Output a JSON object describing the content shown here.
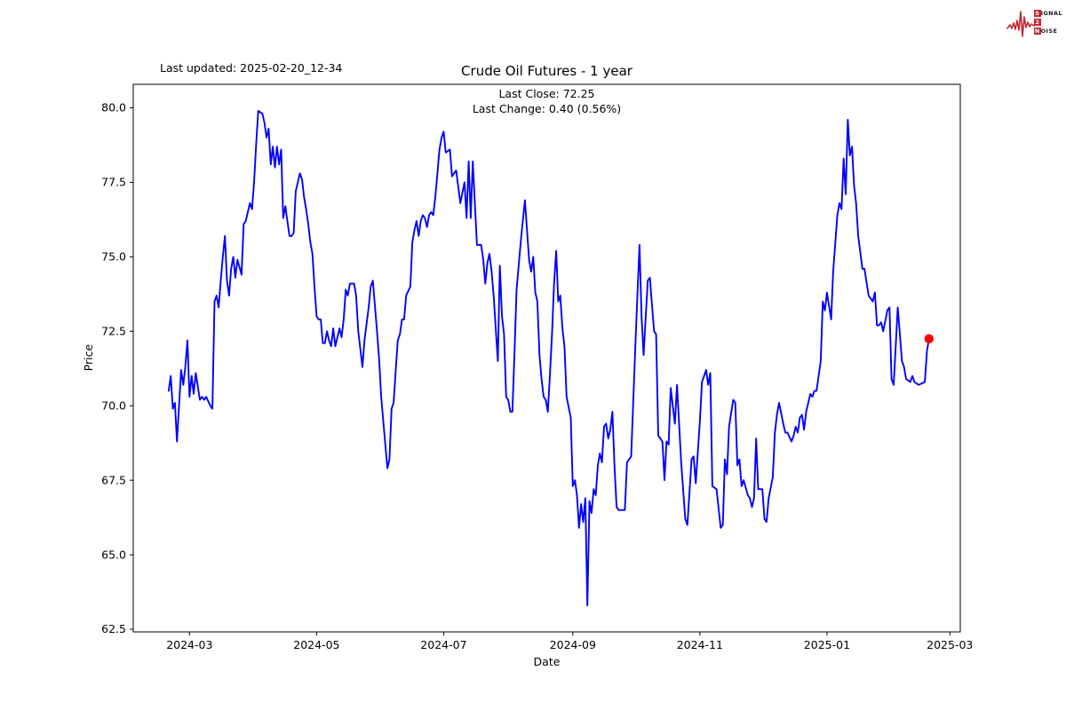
{
  "header": {
    "last_updated": "Last updated: 2025-02-20_12-34",
    "title": "Crude Oil Futures - 1 year",
    "subtitle_line1": "Last Close: 72.25",
    "subtitle_line2": "Last Change: 0.40 (0.56%)"
  },
  "logo": {
    "color": "#c1272d",
    "row1_initial": "S",
    "row1_rest": "IGNAL",
    "row2_initial": "2",
    "row2_rest": "",
    "row3_initial": "N",
    "row3_rest": "OISE"
  },
  "chart_data": {
    "type": "line",
    "title": "Crude Oil Futures - 1 year",
    "xlabel": "Date",
    "ylabel": "Price",
    "legend": "none",
    "grid": false,
    "line_color": "#0000ff",
    "marker_color": "#ff0000",
    "last_close": 72.25,
    "last_change": "0.40 (0.56%)",
    "y_ticks": [
      "62.5",
      "65.0",
      "67.5",
      "70.0",
      "72.5",
      "75.0",
      "77.5",
      "80.0"
    ],
    "x_ticks": [
      {
        "label": "2024-03",
        "date": "2024-03-01"
      },
      {
        "label": "2024-05",
        "date": "2024-05-01"
      },
      {
        "label": "2024-07",
        "date": "2024-07-01"
      },
      {
        "label": "2024-09",
        "date": "2024-09-01"
      },
      {
        "label": "2024-11",
        "date": "2024-11-01"
      },
      {
        "label": "2025-01",
        "date": "2025-01-01"
      },
      {
        "label": "2025-03",
        "date": "2025-03-01"
      }
    ],
    "x_range": [
      "2024-02-03",
      "2025-03-06"
    ],
    "y_range": [
      62.41,
      80.79
    ],
    "dates": [
      "2024-02-20",
      "2024-02-21",
      "2024-02-22",
      "2024-02-23",
      "2024-02-24",
      "2024-02-26",
      "2024-02-27",
      "2024-02-28",
      "2024-02-29",
      "2024-03-01",
      "2024-03-02",
      "2024-03-03",
      "2024-03-04",
      "2024-03-06",
      "2024-03-07",
      "2024-03-08",
      "2024-03-09",
      "2024-03-11",
      "2024-03-12",
      "2024-03-13",
      "2024-03-14",
      "2024-03-15",
      "2024-03-16",
      "2024-03-17",
      "2024-03-18",
      "2024-03-19",
      "2024-03-20",
      "2024-03-21",
      "2024-03-22",
      "2024-03-23",
      "2024-03-24",
      "2024-03-26",
      "2024-03-27",
      "2024-03-28",
      "2024-03-29",
      "2024-03-30",
      "2024-03-31",
      "2024-04-01",
      "2024-04-02",
      "2024-04-03",
      "2024-04-05",
      "2024-04-06",
      "2024-04-07",
      "2024-04-08",
      "2024-04-09",
      "2024-04-10",
      "2024-04-11",
      "2024-04-12",
      "2024-04-13",
      "2024-04-14",
      "2024-04-15",
      "2024-04-16",
      "2024-04-17",
      "2024-04-18",
      "2024-04-19",
      "2024-04-20",
      "2024-04-21",
      "2024-04-22",
      "2024-04-23",
      "2024-04-24",
      "2024-04-25",
      "2024-04-26",
      "2024-04-27",
      "2024-04-28",
      "2024-04-29",
      "2024-04-30",
      "2024-05-01",
      "2024-05-02",
      "2024-05-03",
      "2024-05-04",
      "2024-05-05",
      "2024-05-06",
      "2024-05-07",
      "2024-05-08",
      "2024-05-09",
      "2024-05-10",
      "2024-05-12",
      "2024-05-13",
      "2024-05-14",
      "2024-05-15",
      "2024-05-16",
      "2024-05-17",
      "2024-05-19",
      "2024-05-20",
      "2024-05-21",
      "2024-05-23",
      "2024-05-24",
      "2024-05-26",
      "2024-05-27",
      "2024-05-28",
      "2024-05-30",
      "2024-05-31",
      "2024-06-01",
      "2024-06-02",
      "2024-06-04",
      "2024-06-05",
      "2024-06-06",
      "2024-06-07",
      "2024-06-08",
      "2024-06-09",
      "2024-06-10",
      "2024-06-11",
      "2024-06-12",
      "2024-06-13",
      "2024-06-15",
      "2024-06-16",
      "2024-06-17",
      "2024-06-18",
      "2024-06-19",
      "2024-06-20",
      "2024-06-21",
      "2024-06-22",
      "2024-06-23",
      "2024-06-24",
      "2024-06-25",
      "2024-06-26",
      "2024-06-27",
      "2024-06-28",
      "2024-06-29",
      "2024-06-30",
      "2024-07-01",
      "2024-07-02",
      "2024-07-04",
      "2024-07-05",
      "2024-07-07",
      "2024-07-09",
      "2024-07-11",
      "2024-07-12",
      "2024-07-13",
      "2024-07-14",
      "2024-07-15",
      "2024-07-17",
      "2024-07-18",
      "2024-07-19",
      "2024-07-20",
      "2024-07-21",
      "2024-07-22",
      "2024-07-23",
      "2024-07-24",
      "2024-07-25",
      "2024-07-27",
      "2024-07-28",
      "2024-07-29",
      "2024-07-30",
      "2024-07-31",
      "2024-08-01",
      "2024-08-02",
      "2024-08-03",
      "2024-08-04",
      "2024-08-05",
      "2024-08-07",
      "2024-08-08",
      "2024-08-09",
      "2024-08-11",
      "2024-08-12",
      "2024-08-13",
      "2024-08-14",
      "2024-08-15",
      "2024-08-16",
      "2024-08-17",
      "2024-08-18",
      "2024-08-19",
      "2024-08-20",
      "2024-08-21",
      "2024-08-22",
      "2024-08-23",
      "2024-08-24",
      "2024-08-25",
      "2024-08-26",
      "2024-08-27",
      "2024-08-28",
      "2024-08-29",
      "2024-08-31",
      "2024-09-01",
      "2024-09-02",
      "2024-09-03",
      "2024-09-04",
      "2024-09-05",
      "2024-09-06",
      "2024-09-07",
      "2024-09-08",
      "2024-09-09",
      "2024-09-10",
      "2024-09-11",
      "2024-09-12",
      "2024-09-13",
      "2024-09-14",
      "2024-09-15",
      "2024-09-16",
      "2024-09-17",
      "2024-09-18",
      "2024-09-19",
      "2024-09-20",
      "2024-09-21",
      "2024-09-22",
      "2024-09-23",
      "2024-09-24",
      "2024-09-26",
      "2024-09-27",
      "2024-09-28",
      "2024-09-29",
      "2024-09-30",
      "2024-10-01",
      "2024-10-02",
      "2024-10-03",
      "2024-10-04",
      "2024-10-05",
      "2024-10-06",
      "2024-10-07",
      "2024-10-08",
      "2024-10-09",
      "2024-10-10",
      "2024-10-11",
      "2024-10-12",
      "2024-10-13",
      "2024-10-14",
      "2024-10-15",
      "2024-10-16",
      "2024-10-17",
      "2024-10-18",
      "2024-10-20",
      "2024-10-21",
      "2024-10-23",
      "2024-10-25",
      "2024-10-26",
      "2024-10-28",
      "2024-10-29",
      "2024-10-30",
      "2024-11-01",
      "2024-11-02",
      "2024-11-04",
      "2024-11-05",
      "2024-11-06",
      "2024-11-07",
      "2024-11-09",
      "2024-11-11",
      "2024-11-12",
      "2024-11-13",
      "2024-11-14",
      "2024-11-15",
      "2024-11-17",
      "2024-11-18",
      "2024-11-19",
      "2024-11-20",
      "2024-11-21",
      "2024-11-22",
      "2024-11-24",
      "2024-11-25",
      "2024-11-26",
      "2024-11-27",
      "2024-11-28",
      "2024-11-29",
      "2024-11-30",
      "2024-12-01",
      "2024-12-02",
      "2024-12-03",
      "2024-12-04",
      "2024-12-06",
      "2024-12-07",
      "2024-12-08",
      "2024-12-09",
      "2024-12-11",
      "2024-12-12",
      "2024-12-13",
      "2024-12-15",
      "2024-12-16",
      "2024-12-17",
      "2024-12-18",
      "2024-12-19",
      "2024-12-20",
      "2024-12-21",
      "2024-12-22",
      "2024-12-24",
      "2024-12-25",
      "2024-12-26",
      "2024-12-27",
      "2024-12-29",
      "2024-12-30",
      "2024-12-31",
      "2025-01-01",
      "2025-01-03",
      "2025-01-04",
      "2025-01-06",
      "2025-01-07",
      "2025-01-08",
      "2025-01-09",
      "2025-01-10",
      "2025-01-11",
      "2025-01-12",
      "2025-01-13",
      "2025-01-14",
      "2025-01-15",
      "2025-01-16",
      "2025-01-18",
      "2025-01-19",
      "2025-01-21",
      "2025-01-22",
      "2025-01-23",
      "2025-01-24",
      "2025-01-25",
      "2025-01-26",
      "2025-01-27",
      "2025-01-28",
      "2025-01-30",
      "2025-01-31",
      "2025-02-01",
      "2025-02-02",
      "2025-02-03",
      "2025-02-04",
      "2025-02-05",
      "2025-02-06",
      "2025-02-07",
      "2025-02-08",
      "2025-02-10",
      "2025-02-11",
      "2025-02-12",
      "2025-02-14",
      "2025-02-17",
      "2025-02-18",
      "2025-02-19"
    ],
    "prices": [
      70.5,
      71.0,
      69.9,
      70.1,
      68.8,
      71.2,
      70.7,
      71.3,
      72.2,
      70.3,
      71.0,
      70.4,
      71.1,
      70.2,
      70.3,
      70.2,
      70.3,
      70.0,
      69.9,
      73.5,
      73.7,
      73.3,
      74.2,
      75.0,
      75.7,
      74.2,
      73.7,
      74.6,
      75.0,
      74.3,
      74.9,
      74.4,
      76.1,
      76.2,
      76.5,
      76.8,
      76.6,
      77.5,
      78.8,
      79.9,
      79.8,
      79.5,
      79.0,
      79.3,
      78.1,
      78.7,
      78.0,
      78.7,
      78.1,
      78.6,
      76.3,
      76.7,
      76.2,
      75.7,
      75.7,
      75.8,
      77.2,
      77.5,
      77.8,
      77.6,
      77.0,
      76.6,
      76.1,
      75.5,
      75.1,
      74.0,
      73.0,
      72.9,
      72.9,
      72.1,
      72.1,
      72.5,
      72.2,
      72.0,
      72.6,
      72.0,
      72.6,
      72.3,
      72.9,
      73.9,
      73.7,
      74.1,
      74.1,
      73.7,
      72.5,
      71.3,
      72.2,
      73.3,
      74.0,
      74.2,
      72.5,
      71.6,
      70.3,
      69.5,
      67.9,
      68.2,
      69.9,
      70.1,
      71.2,
      72.2,
      72.4,
      72.9,
      72.9,
      73.7,
      74.0,
      75.5,
      75.9,
      76.2,
      75.7,
      76.2,
      76.4,
      76.3,
      76.0,
      76.4,
      76.5,
      76.4,
      77.0,
      77.8,
      78.6,
      79.0,
      79.2,
      78.5,
      78.6,
      77.7,
      77.9,
      76.8,
      77.5,
      76.3,
      78.2,
      76.3,
      78.2,
      75.4,
      75.4,
      75.4,
      74.9,
      74.1,
      74.8,
      75.1,
      74.5,
      73.7,
      71.5,
      74.7,
      73.0,
      72.4,
      70.3,
      70.2,
      69.8,
      69.8,
      71.8,
      73.9,
      75.5,
      76.2,
      76.9,
      74.9,
      74.5,
      75.0,
      73.8,
      73.5,
      71.7,
      70.9,
      70.3,
      70.2,
      69.8,
      71.0,
      72.4,
      74.1,
      75.2,
      73.5,
      73.7,
      72.6,
      72.0,
      70.3,
      69.6,
      67.3,
      67.5,
      67.0,
      65.9,
      66.7,
      66.1,
      66.9,
      63.3,
      66.8,
      66.4,
      67.2,
      67.0,
      68.0,
      68.4,
      68.1,
      69.3,
      69.4,
      68.9,
      69.2,
      69.8,
      68.0,
      66.6,
      66.5,
      66.5,
      66.5,
      68.1,
      68.2,
      68.3,
      70.1,
      72.0,
      73.7,
      75.4,
      73.0,
      71.7,
      73.0,
      74.2,
      74.3,
      73.4,
      72.5,
      72.4,
      69.0,
      68.9,
      68.8,
      67.5,
      68.8,
      68.7,
      70.6,
      69.4,
      70.7,
      68.1,
      66.2,
      66.0,
      68.2,
      68.3,
      67.4,
      69.5,
      70.8,
      71.2,
      70.7,
      71.1,
      67.3,
      67.2,
      65.9,
      66.0,
      68.2,
      67.7,
      69.3,
      70.2,
      70.1,
      68.0,
      68.2,
      67.3,
      67.5,
      67.0,
      66.9,
      66.6,
      66.9,
      68.9,
      67.2,
      67.2,
      67.2,
      66.2,
      66.1,
      66.9,
      67.6,
      69.1,
      69.7,
      70.1,
      69.4,
      69.1,
      69.1,
      68.8,
      69.0,
      69.3,
      69.1,
      69.6,
      69.7,
      69.2,
      69.8,
      70.4,
      70.3,
      70.5,
      70.5,
      71.5,
      73.5,
      73.2,
      73.8,
      72.9,
      74.5,
      76.4,
      76.8,
      76.6,
      78.3,
      77.1,
      79.6,
      78.4,
      78.7,
      77.4,
      76.8,
      75.7,
      74.6,
      74.6,
      73.7,
      73.6,
      73.5,
      73.8,
      72.7,
      72.7,
      72.8,
      72.5,
      73.2,
      73.3,
      70.9,
      70.7,
      72.0,
      73.3,
      72.4,
      71.5,
      71.3,
      70.9,
      70.8,
      71.0,
      70.8,
      70.7,
      70.8,
      71.85,
      72.25
    ]
  }
}
